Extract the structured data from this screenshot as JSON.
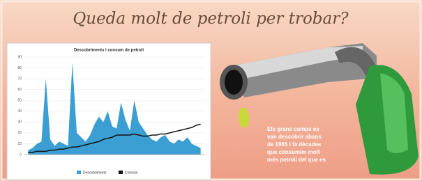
{
  "title": "Queda molt de petroli per trobar?",
  "chart_data": {
    "type": "area-line",
    "title": "Descobriments i consum de petroli",
    "x": [
      1930,
      1932,
      1934,
      1936,
      1938,
      1940,
      1942,
      1944,
      1946,
      1948,
      1950,
      1952,
      1954,
      1956,
      1958,
      1960,
      1962,
      1964,
      1966,
      1968,
      1970,
      1972,
      1974,
      1976,
      1978,
      1980,
      1982,
      1984,
      1986,
      1988,
      1990,
      1992,
      1994,
      1996,
      1998,
      2000,
      2002,
      2004,
      2006,
      2008
    ],
    "xlim": [
      1928,
      2010
    ],
    "ylim": [
      0,
      90
    ],
    "yticks": [
      0,
      10,
      20,
      30,
      40,
      50,
      60,
      70,
      80,
      90
    ],
    "grid": true,
    "series": [
      {
        "name": "Descobriments",
        "color": "#3b9fd3",
        "values": [
          4,
          6,
          10,
          12,
          70,
          14,
          8,
          12,
          10,
          8,
          85,
          20,
          16,
          12,
          18,
          28,
          35,
          30,
          40,
          26,
          24,
          48,
          32,
          22,
          50,
          30,
          24,
          18,
          14,
          12,
          16,
          18,
          12,
          10,
          14,
          12,
          16,
          10,
          8,
          6
        ]
      },
      {
        "name": "Consum",
        "color": "#111111",
        "values": [
          2,
          2,
          3,
          3,
          3,
          4,
          4,
          5,
          5,
          6,
          7,
          7,
          8,
          9,
          10,
          11,
          12,
          14,
          15,
          16,
          18,
          18,
          18,
          18,
          19,
          18,
          17,
          17,
          18,
          18,
          19,
          19,
          20,
          21,
          22,
          23,
          24,
          25,
          27,
          28
        ]
      }
    ]
  },
  "caption": [
    "Els grans camps es",
    "van descobrir abans",
    "de 1965 i fa dècades",
    "que consumim molt",
    "més petroli del que es"
  ]
}
